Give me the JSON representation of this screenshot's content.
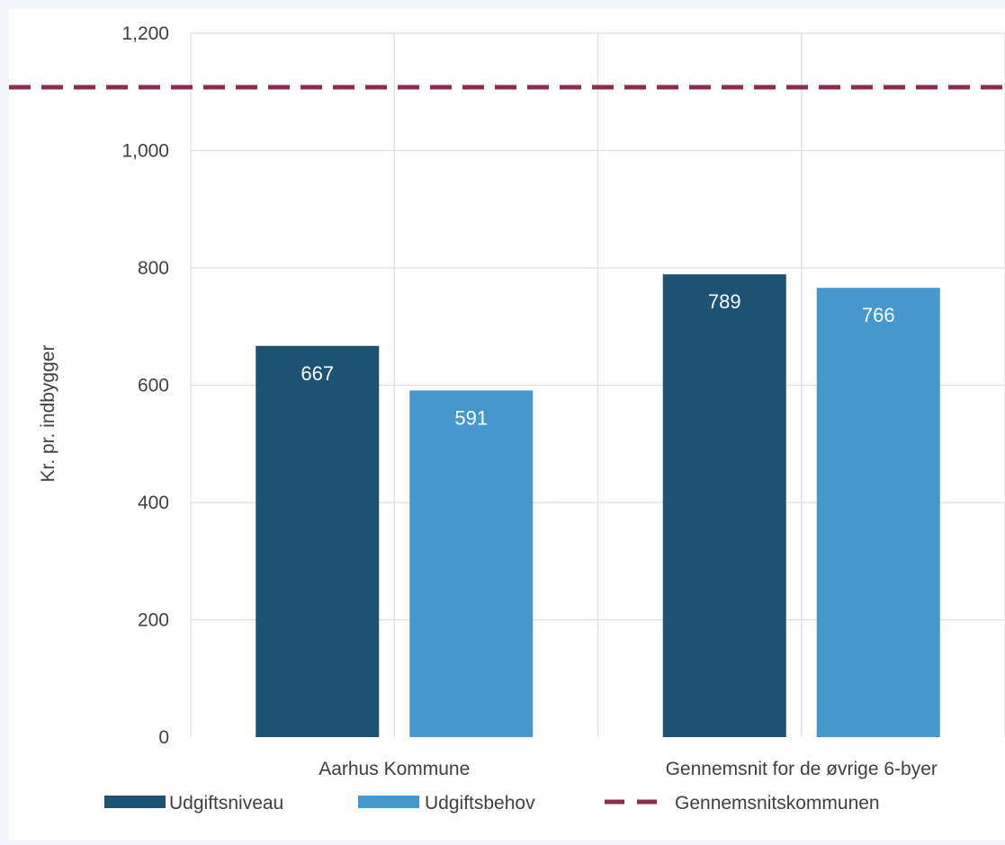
{
  "chart_data": {
    "type": "bar",
    "categories": [
      "Aarhus Kommune",
      "Gennemsnit for de øvrige 6-byer"
    ],
    "series": [
      {
        "name": "Udgiftsniveau",
        "values": [
          667,
          789
        ],
        "color": "#1d5274"
      },
      {
        "name": "Udgiftsbehov",
        "values": [
          591,
          766
        ],
        "color": "#4597ce"
      }
    ],
    "reference_line": {
      "name": "Gennemsnitskommunen",
      "value": 1108,
      "color": "#8b2c50",
      "style": "dashed"
    },
    "ylabel": "Kr. pr. indbygger",
    "ylim": [
      0,
      1200
    ],
    "yticks": [
      0,
      200,
      400,
      600,
      800,
      1000,
      1200
    ],
    "ytick_labels": [
      "0",
      "200",
      "400",
      "600",
      "800",
      "1,000",
      "1,200"
    ],
    "grid": true,
    "legend_position": "bottom"
  }
}
